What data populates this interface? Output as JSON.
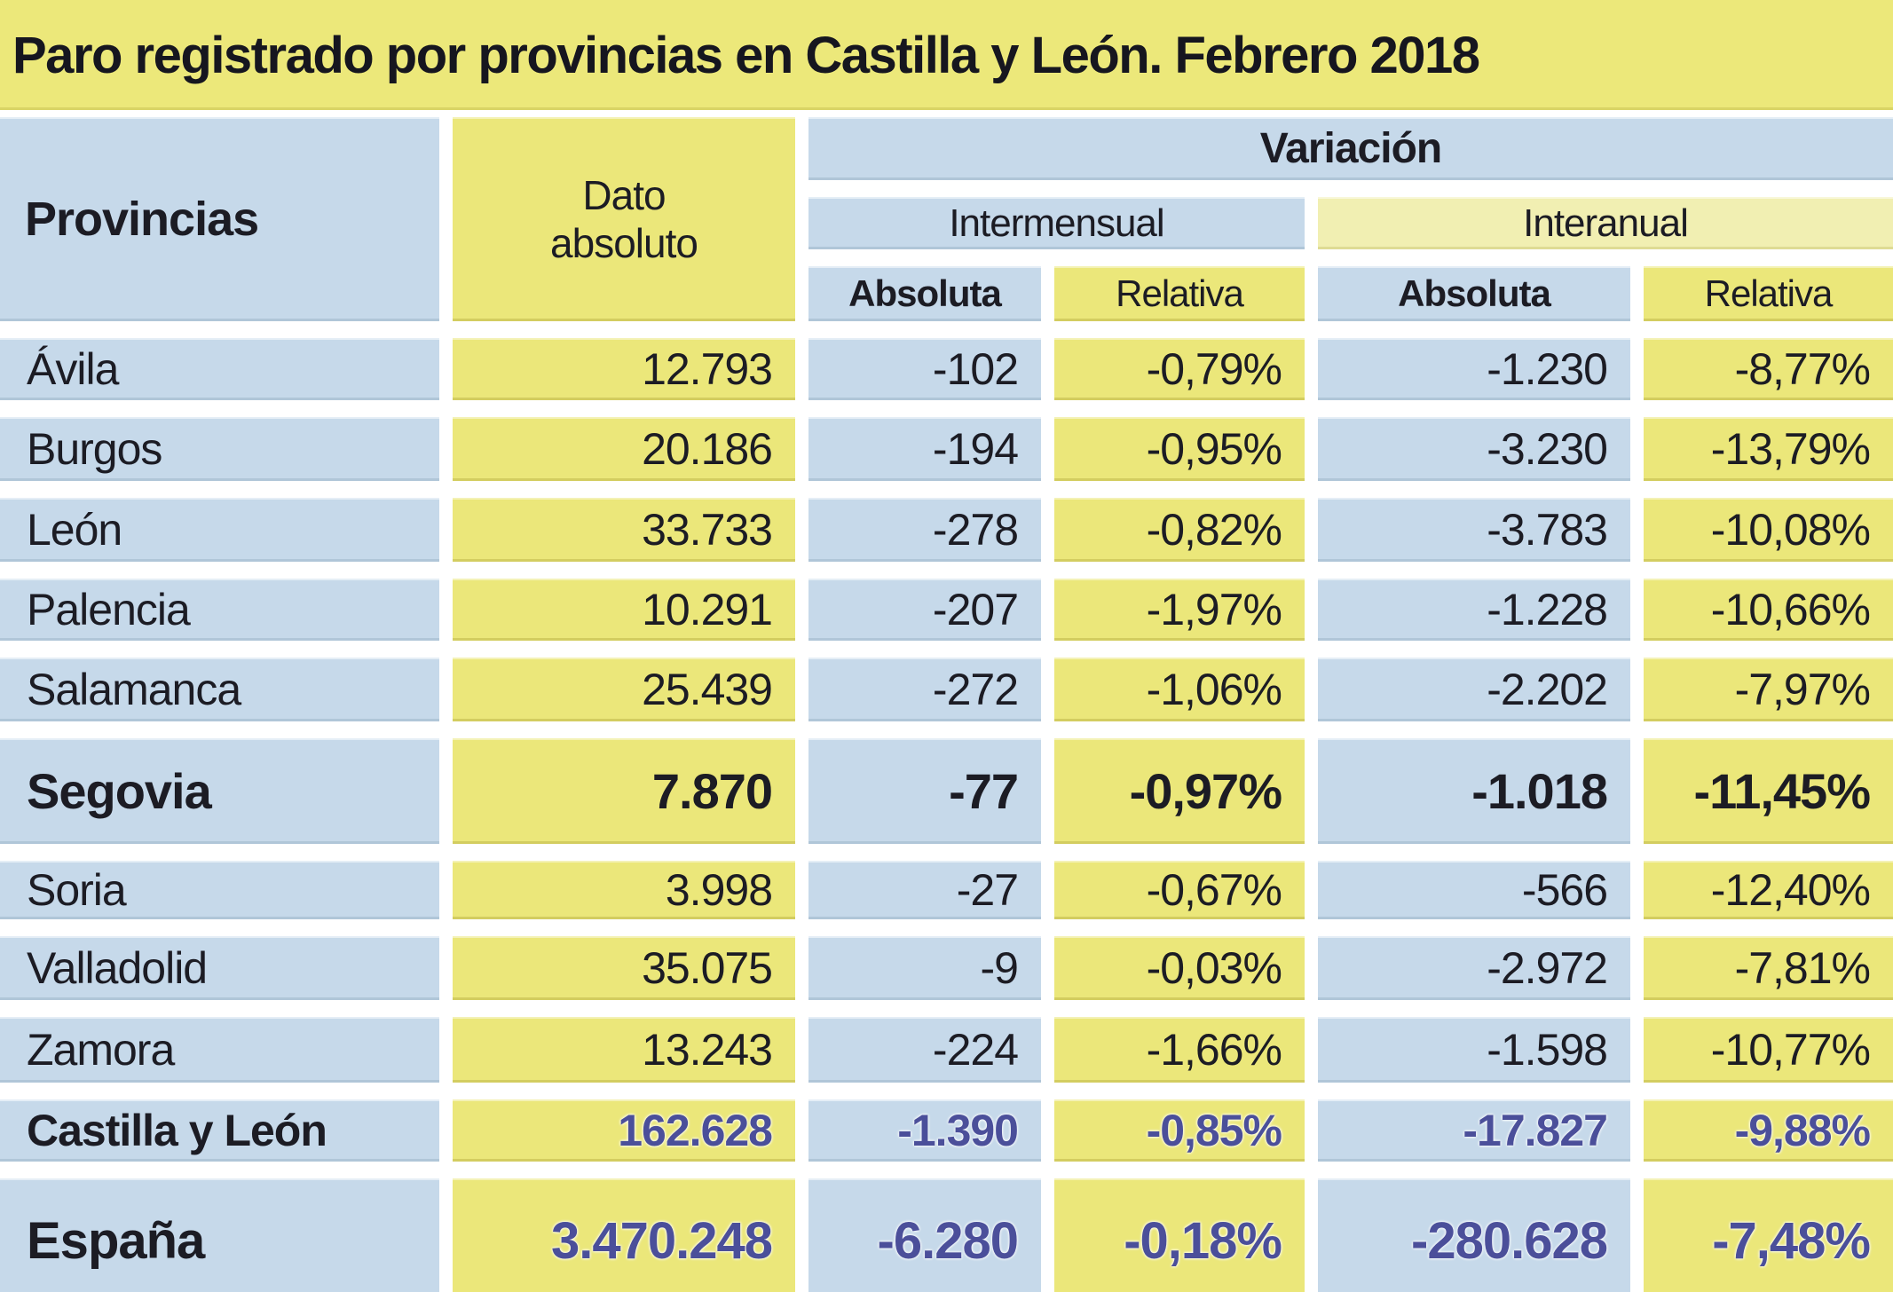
{
  "title": "Paro registrado por provincias en Castilla y León. Febrero 2018",
  "header": {
    "provincias": "Provincias",
    "dato_absoluto": "Dato absoluto",
    "variacion": "Variación",
    "intermensual": "Intermensual",
    "interanual": "Interanual",
    "intermensual_absoluta": "Absoluta",
    "intermensual_relativa": "Relativa",
    "interanual_absoluta": "Absoluta",
    "interanual_relativa": "Relativa"
  },
  "colors": {
    "title_bg": "#ece87a",
    "cell_blue": "#c6d9ea",
    "cell_yellow": "#ebe77a",
    "cell_yellow_light": "#f1efb2",
    "text_dark": "#1c1c24",
    "text_summary_indigo": "#4b4f9a",
    "background": "#ffffff"
  },
  "chart_data": {
    "type": "table",
    "title": "Paro registrado por provincias en Castilla y León. Febrero 2018",
    "column_groups": [
      "Provincias",
      "Dato absoluto",
      "Variación Intermensual",
      "Variación Interanual"
    ],
    "columns": [
      "Provincias",
      "Dato absoluto",
      "Intermensual Absoluta",
      "Intermensual Relativa",
      "Interanual Absoluta",
      "Interanual Relativa"
    ],
    "rows": [
      {
        "name": "Ávila",
        "dato": "12.793",
        "im_abs": "-102",
        "im_rel": "-0,79%",
        "ia_abs": "-1.230",
        "ia_rel": "-8,77%",
        "style": "normal"
      },
      {
        "name": "Burgos",
        "dato": "20.186",
        "im_abs": "-194",
        "im_rel": "-0,95%",
        "ia_abs": "-3.230",
        "ia_rel": "-13,79%",
        "style": "normal"
      },
      {
        "name": "León",
        "dato": "33.733",
        "im_abs": "-278",
        "im_rel": "-0,82%",
        "ia_abs": "-3.783",
        "ia_rel": "-10,08%",
        "style": "normal"
      },
      {
        "name": "Palencia",
        "dato": "10.291",
        "im_abs": "-207",
        "im_rel": "-1,97%",
        "ia_abs": "-1.228",
        "ia_rel": "-10,66%",
        "style": "normal"
      },
      {
        "name": "Salamanca",
        "dato": "25.439",
        "im_abs": "-272",
        "im_rel": "-1,06%",
        "ia_abs": "-2.202",
        "ia_rel": "-7,97%",
        "style": "normal"
      },
      {
        "name": "Segovia",
        "dato": "7.870",
        "im_abs": "-77",
        "im_rel": "-0,97%",
        "ia_abs": "-1.018",
        "ia_rel": "-11,45%",
        "style": "highlight"
      },
      {
        "name": "Soria",
        "dato": "3.998",
        "im_abs": "-27",
        "im_rel": "-0,67%",
        "ia_abs": "-566",
        "ia_rel": "-12,40%",
        "style": "normal"
      },
      {
        "name": "Valladolid",
        "dato": "35.075",
        "im_abs": "-9",
        "im_rel": "-0,03%",
        "ia_abs": "-2.972",
        "ia_rel": "-7,81%",
        "style": "normal"
      },
      {
        "name": "Zamora",
        "dato": "13.243",
        "im_abs": "-224",
        "im_rel": "-1,66%",
        "ia_abs": "-1.598",
        "ia_rel": "-10,77%",
        "style": "normal"
      },
      {
        "name": "Castilla y León",
        "dato": "162.628",
        "im_abs": "-1.390",
        "im_rel": "-0,85%",
        "ia_abs": "-17.827",
        "ia_rel": "-9,88%",
        "style": "total"
      },
      {
        "name": "España",
        "dato": "3.470.248",
        "im_abs": "-6.280",
        "im_rel": "-0,18%",
        "ia_abs": "-280.628",
        "ia_rel": "-7,48%",
        "style": "grand_total"
      }
    ]
  }
}
